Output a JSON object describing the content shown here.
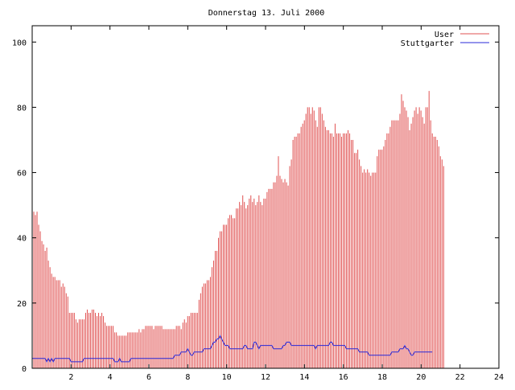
{
  "chart_data": {
    "type": "line",
    "title": "Donnerstag 13. Juli 2000",
    "xlabel": "",
    "ylabel": "",
    "xlim": [
      0,
      24
    ],
    "ylim": [
      0,
      105
    ],
    "x_ticks": [
      2,
      4,
      6,
      8,
      10,
      12,
      14,
      16,
      18,
      20,
      22,
      24
    ],
    "y_ticks": [
      0,
      20,
      40,
      60,
      80,
      100
    ],
    "x_tick_labels": [
      "2",
      "4",
      "6",
      "8",
      "10",
      "12",
      "14",
      "16",
      "18",
      "20",
      "22",
      "24"
    ],
    "y_tick_labels": [
      "0",
      "20",
      "40",
      "60",
      "80",
      "100"
    ],
    "grid": false,
    "legend_position": "top-right",
    "sample_interval_hours": 0.0833,
    "series": [
      {
        "name": "User",
        "style": "impulses",
        "color": "#e05050",
        "values": [
          54,
          48,
          47,
          48,
          44,
          42,
          39,
          38,
          36,
          37,
          33,
          31,
          29,
          28,
          28,
          27,
          27,
          27,
          25,
          26,
          25,
          23,
          22,
          17,
          17,
          17,
          17,
          15,
          14,
          15,
          15,
          15,
          15,
          17,
          18,
          17,
          17,
          18,
          18,
          17,
          16,
          17,
          16,
          17,
          16,
          14,
          13,
          13,
          13,
          13,
          13,
          11,
          11,
          10,
          10,
          10,
          10,
          10,
          10,
          11,
          11,
          11,
          11,
          11,
          11,
          11,
          12,
          11,
          12,
          12,
          13,
          13,
          13,
          13,
          13,
          12,
          13,
          13,
          13,
          13,
          13,
          12,
          12,
          12,
          12,
          12,
          12,
          12,
          12,
          13,
          13,
          13,
          12,
          14,
          15,
          14,
          16,
          16,
          17,
          17,
          17,
          17,
          17,
          21,
          23,
          25,
          26,
          26,
          27,
          27,
          28,
          31,
          33,
          36,
          36,
          40,
          42,
          42,
          44,
          44,
          44,
          46,
          47,
          47,
          46,
          46,
          49,
          49,
          51,
          50,
          53,
          51,
          49,
          50,
          52,
          53,
          51,
          52,
          50,
          51,
          53,
          51,
          50,
          52,
          52,
          54,
          55,
          55,
          55,
          57,
          57,
          59,
          65,
          59,
          58,
          57,
          58,
          57,
          56,
          62,
          64,
          70,
          71,
          71,
          72,
          72,
          74,
          75,
          76,
          78,
          80,
          80,
          78,
          80,
          79,
          76,
          74,
          80,
          80,
          78,
          76,
          74,
          73,
          73,
          72,
          72,
          71,
          75,
          72,
          72,
          72,
          71,
          72,
          72,
          72,
          73,
          72,
          70,
          70,
          66,
          66,
          67,
          64,
          62,
          60,
          61,
          60,
          61,
          60,
          59,
          60,
          60,
          60,
          65,
          67,
          67,
          67,
          68,
          70,
          72,
          72,
          74,
          76,
          76,
          76,
          76,
          76,
          78,
          84,
          82,
          80,
          79,
          77,
          73,
          75,
          77,
          79,
          80,
          78,
          80,
          79,
          77,
          75,
          80,
          80,
          85,
          76,
          72,
          71,
          71,
          70,
          68,
          65,
          64,
          62
        ]
      },
      {
        "name": "Stuttgarter",
        "style": "lines",
        "color": "#2828d8",
        "values": [
          3,
          3,
          3,
          3,
          3,
          3,
          3,
          3,
          3,
          2,
          3,
          2,
          3,
          2,
          3,
          3,
          3,
          3,
          3,
          3,
          3,
          3,
          3,
          3,
          2,
          2,
          2,
          2,
          2,
          2,
          2,
          2,
          3,
          3,
          3,
          3,
          3,
          3,
          3,
          3,
          3,
          3,
          3,
          3,
          3,
          3,
          3,
          3,
          3,
          3,
          3,
          2,
          2,
          2,
          3,
          2,
          2,
          2,
          2,
          2,
          2,
          3,
          3,
          3,
          3,
          3,
          3,
          3,
          3,
          3,
          3,
          3,
          3,
          3,
          3,
          3,
          3,
          3,
          3,
          3,
          3,
          3,
          3,
          3,
          3,
          3,
          3,
          3,
          4,
          4,
          4,
          4,
          5,
          5,
          5,
          5,
          6,
          5,
          4,
          4,
          5,
          5,
          5,
          5,
          5,
          5,
          6,
          6,
          6,
          6,
          6,
          7,
          8,
          8,
          9,
          9,
          10,
          9,
          8,
          7,
          7,
          7,
          6,
          6,
          6,
          6,
          6,
          6,
          6,
          6,
          6,
          7,
          7,
          6,
          6,
          6,
          6,
          8,
          8,
          7,
          6,
          7,
          7,
          7,
          7,
          7,
          7,
          7,
          7,
          6,
          6,
          6,
          6,
          6,
          6,
          7,
          7,
          8,
          8,
          8,
          7,
          7,
          7,
          7,
          7,
          7,
          7,
          7,
          7,
          7,
          7,
          7,
          7,
          7,
          7,
          6,
          7,
          7,
          7,
          7,
          7,
          7,
          7,
          7,
          8,
          8,
          7,
          7,
          7,
          7,
          7,
          7,
          7,
          7,
          6,
          6,
          6,
          6,
          6,
          6,
          6,
          6,
          5,
          5,
          5,
          5,
          5,
          5,
          4,
          4,
          4,
          4,
          4,
          4,
          4,
          4,
          4,
          4,
          4,
          4,
          4,
          4,
          5,
          5,
          5,
          5,
          5,
          6,
          6,
          6,
          7,
          6,
          6,
          5,
          4,
          4,
          5,
          5,
          5,
          5,
          5,
          5,
          5,
          5,
          5,
          5,
          5,
          5
        ]
      }
    ]
  }
}
